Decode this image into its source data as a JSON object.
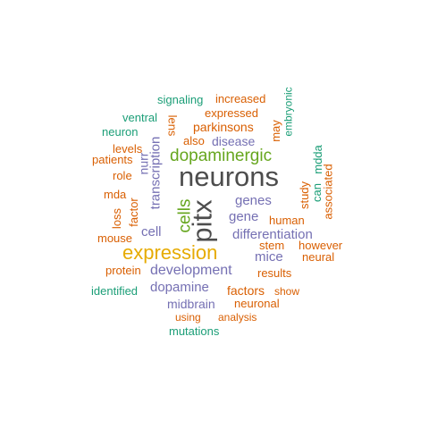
{
  "palette": {
    "dark": "#4d4d4d",
    "orange": "#d95f02",
    "purple": "#7570b3",
    "green": "#66a61e",
    "teal": "#1b9e77",
    "gold": "#e6ab02"
  },
  "words": [
    {
      "text": "neurons",
      "color": "dark"
    },
    {
      "text": "pitx",
      "color": "dark"
    },
    {
      "text": "expression",
      "color": "gold"
    },
    {
      "text": "dopaminergic",
      "color": "green"
    },
    {
      "text": "cells",
      "color": "green"
    },
    {
      "text": "development",
      "color": "purple"
    },
    {
      "text": "differentiation",
      "color": "purple"
    },
    {
      "text": "gene",
      "color": "purple"
    },
    {
      "text": "genes",
      "color": "purple"
    },
    {
      "text": "mice",
      "color": "purple"
    },
    {
      "text": "dopamine",
      "color": "purple"
    },
    {
      "text": "disease",
      "color": "purple"
    },
    {
      "text": "midbrain",
      "color": "purple"
    },
    {
      "text": "transcription",
      "color": "purple"
    },
    {
      "text": "cell",
      "color": "purple"
    },
    {
      "text": "nurr",
      "color": "purple"
    },
    {
      "text": "factors",
      "color": "orange"
    },
    {
      "text": "neuronal",
      "color": "orange"
    },
    {
      "text": "human",
      "color": "orange"
    },
    {
      "text": "parkinsons",
      "color": "orange"
    },
    {
      "text": "expressed",
      "color": "orange"
    },
    {
      "text": "increased",
      "color": "orange"
    },
    {
      "text": "also",
      "color": "orange"
    },
    {
      "text": "lens",
      "color": "orange"
    },
    {
      "text": "may",
      "color": "orange"
    },
    {
      "text": "study",
      "color": "orange"
    },
    {
      "text": "stem",
      "color": "orange"
    },
    {
      "text": "results",
      "color": "orange"
    },
    {
      "text": "show",
      "color": "orange"
    },
    {
      "text": "analysis",
      "color": "orange"
    },
    {
      "text": "using",
      "color": "orange"
    },
    {
      "text": "protein",
      "color": "orange"
    },
    {
      "text": "mouse",
      "color": "orange"
    },
    {
      "text": "factor",
      "color": "orange"
    },
    {
      "text": "loss",
      "color": "orange"
    },
    {
      "text": "mda",
      "color": "orange"
    },
    {
      "text": "role",
      "color": "orange"
    },
    {
      "text": "levels",
      "color": "orange"
    },
    {
      "text": "patients",
      "color": "orange"
    },
    {
      "text": "however",
      "color": "orange"
    },
    {
      "text": "neural",
      "color": "orange"
    },
    {
      "text": "associated",
      "color": "orange"
    },
    {
      "text": "signaling",
      "color": "teal"
    },
    {
      "text": "ventral",
      "color": "teal"
    },
    {
      "text": "neuron",
      "color": "teal"
    },
    {
      "text": "embryonic",
      "color": "teal"
    },
    {
      "text": "mdda",
      "color": "teal"
    },
    {
      "text": "can",
      "color": "teal"
    },
    {
      "text": "identified",
      "color": "teal"
    },
    {
      "text": "mutations",
      "color": "teal"
    }
  ]
}
